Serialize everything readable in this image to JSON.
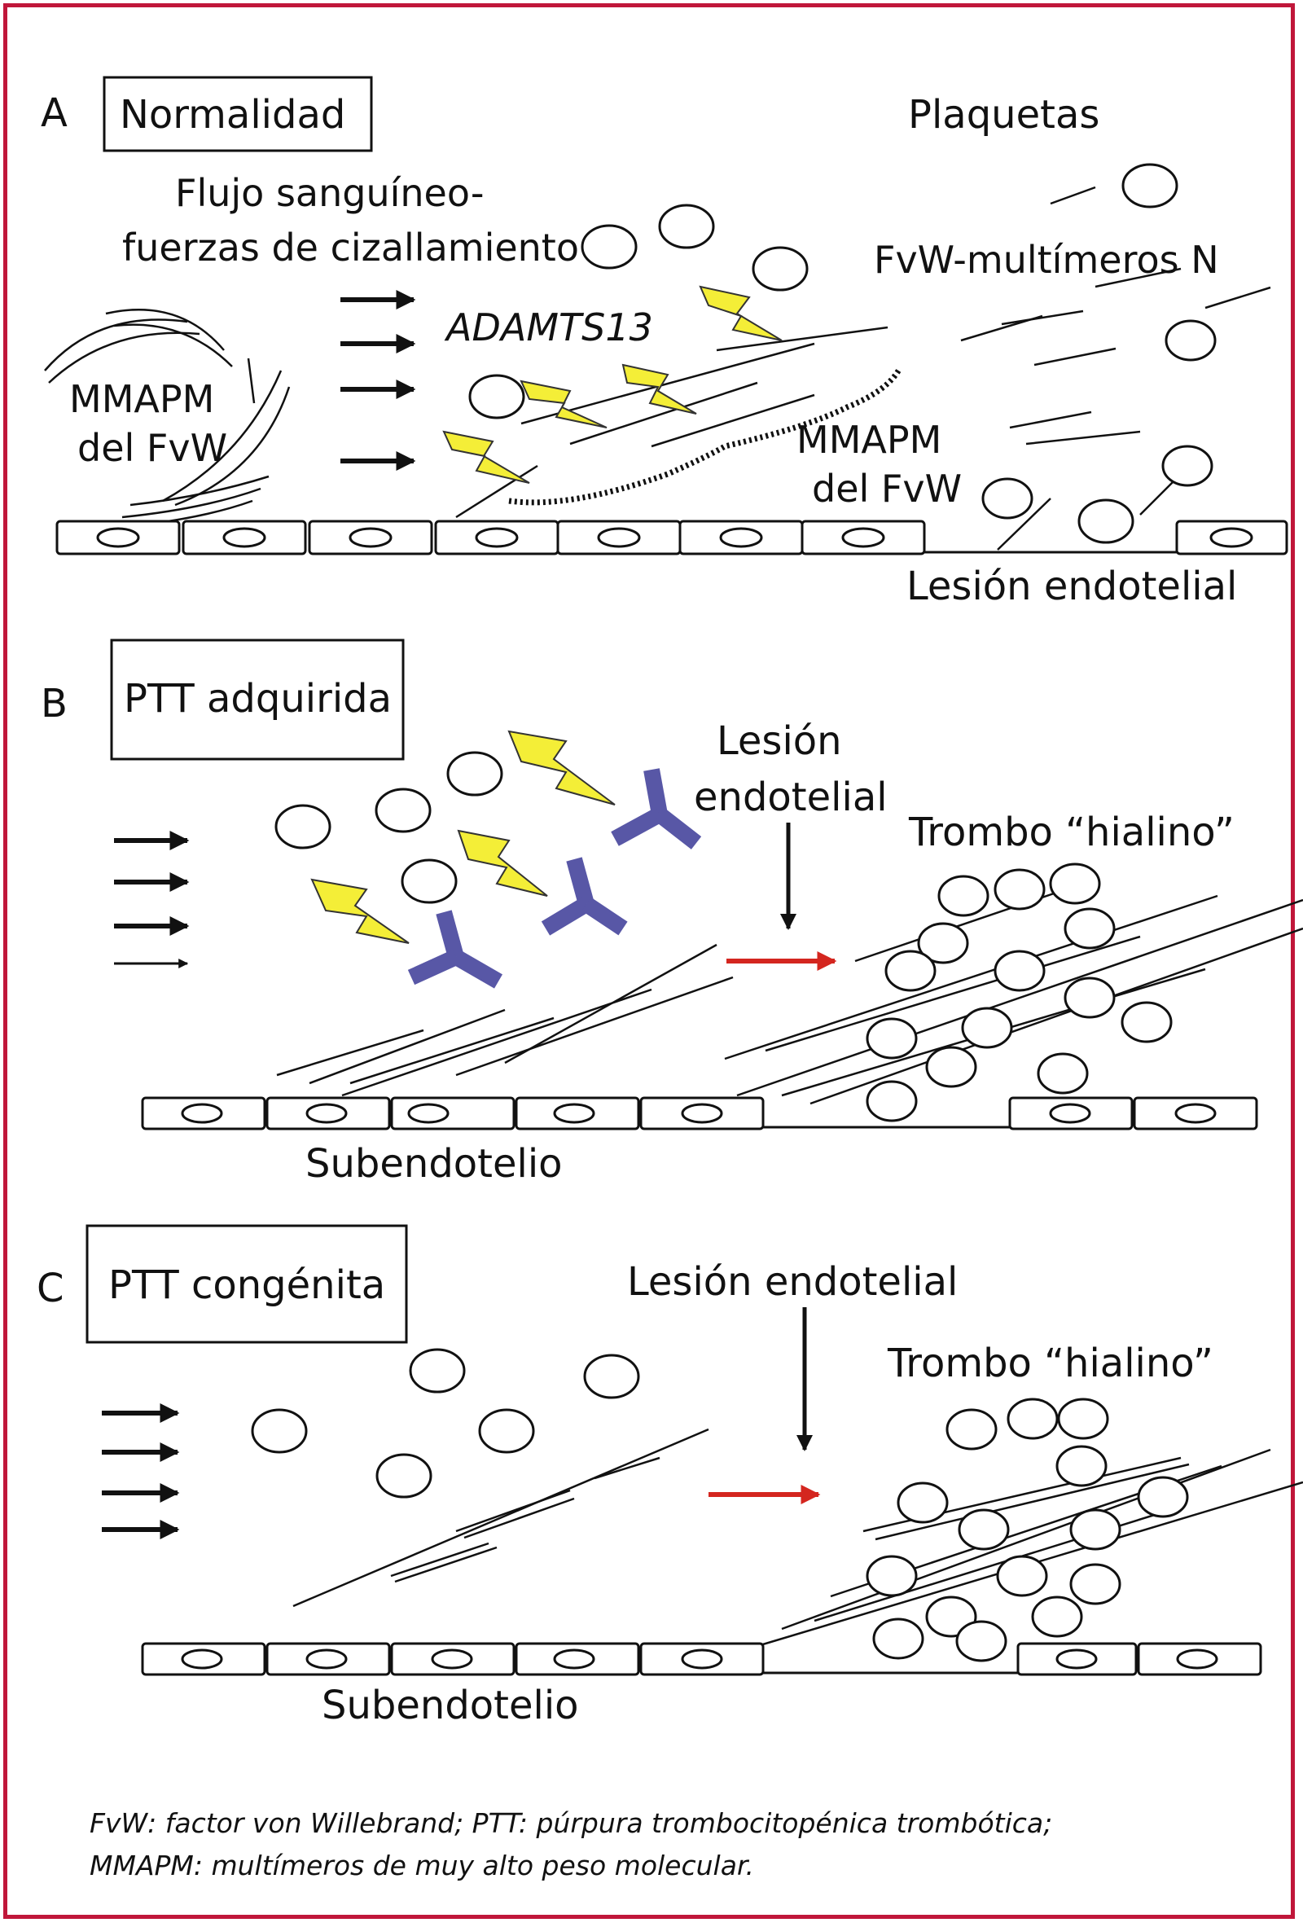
{
  "colors": {
    "border": "#c0173a",
    "lightning": "#f4ee37",
    "antibody": "#5857a6",
    "red_arrow": "#d4261f",
    "line": "#111111"
  },
  "panelA": {
    "letter": "A",
    "label": "Normalidad",
    "plaquetas": "Plaquetas",
    "flujo_line1": "Flujo sanguíneo-",
    "flujo_line2": "fuerzas de cizallamiento",
    "adamts13": "ADAMTS13",
    "fvw_multimeros": "FvW-multímeros N",
    "mmapm_left_line1": "MMAPM",
    "mmapm_left_line2": "del FvW",
    "mmapm_right_line1": "MMAPM",
    "mmapm_right_line2": "del FvW",
    "lesion": "Lesión endotelial"
  },
  "panelB": {
    "letter": "B",
    "label": "PTT adquirida",
    "lesion_line1": "Lesión",
    "lesion_line2": "endotelial",
    "trombo": "Trombo “hialino”",
    "subendotelio": "Subendotelio"
  },
  "panelC": {
    "letter": "C",
    "label": "PTT congénita",
    "lesion": "Lesión endotelial",
    "trombo": "Trombo “hialino”",
    "subendotelio": "Subendotelio"
  },
  "footnote": {
    "line1": "FvW: factor von Willebrand; PTT: púrpura trombocitopénica trombótica;",
    "line2": "MMAPM: multímeros de muy alto peso molecular."
  },
  "icons": [
    "platelet-icon",
    "lightning-icon",
    "antibody-icon",
    "flow-arrow-icon",
    "endothelial-cell-icon"
  ]
}
